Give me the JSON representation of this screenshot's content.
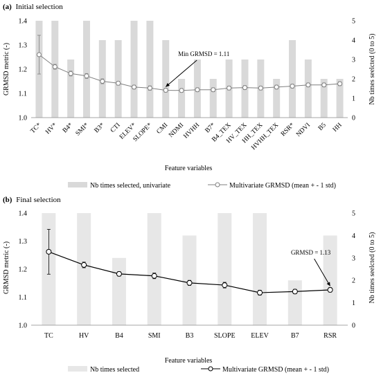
{
  "chart_data": [
    {
      "type": "bar+line",
      "title": "(a) Initial selection",
      "title_prefix": "(a)",
      "title_text": "Initial selection",
      "xlabel": "Feature variables",
      "ylabel_left": "GRMSD metric (-)",
      "ylabel_right": "Nb times seelcted (0 to 5)",
      "ylim_left": [
        1.0,
        1.4
      ],
      "yticks_left": [
        "1.0",
        "1.1",
        "1.2",
        "1.3",
        "1.4"
      ],
      "ylim_right": [
        0,
        5
      ],
      "yticks_right": [
        "0",
        "1",
        "2",
        "3",
        "4",
        "5"
      ],
      "categories": [
        "TC*",
        "HV*",
        "B4*",
        "SMI*",
        "B3*",
        "CTI",
        "ELEV*",
        "SLOPE*",
        "CMI",
        "NDMI",
        "HVHH",
        "B7*",
        "B4_TEX",
        "HV_TEX",
        "HH_TEX",
        "HVHH_TEX",
        "RSR*",
        "NDVI",
        "B5",
        "HH"
      ],
      "bars": {
        "name": "Nb times selected, univariate",
        "color": "#d9d9d9",
        "values": [
          5,
          5,
          3,
          5,
          4,
          4,
          5,
          5,
          4,
          2,
          3,
          2,
          3,
          3,
          3,
          2,
          4,
          3,
          2,
          2
        ]
      },
      "line": {
        "name": "Multivariate GRMSD (mean + - 1 std)",
        "color": "#7f7f7f",
        "mean": [
          1.26,
          1.21,
          1.182,
          1.172,
          1.15,
          1.142,
          1.126,
          1.122,
          1.113,
          1.112,
          1.115,
          1.115,
          1.122,
          1.124,
          1.122,
          1.126,
          1.13,
          1.135,
          1.135,
          1.14
        ],
        "std": [
          0.08,
          0.01,
          0.01,
          0.01,
          0.01,
          0.008,
          0.008,
          0.009,
          0.008,
          0.008,
          0.008,
          0.008,
          0.008,
          0.008,
          0.008,
          0.008,
          0.008,
          0.008,
          0.008,
          0.008
        ]
      },
      "annotation": {
        "text": "Min GRMSD = 1.11",
        "index": 8
      },
      "legend_position": "bottom",
      "grid": false
    },
    {
      "type": "bar+line",
      "title": "(b) Final selection",
      "title_prefix": "(b)",
      "title_text": "Final selection",
      "xlabel": "Feature variables",
      "ylabel_left": "GRMSD metric (-)",
      "ylabel_right": "Nb times seelcted (0 to 5)",
      "ylim_left": [
        1.0,
        1.4
      ],
      "yticks_left": [
        "1.0",
        "1.1",
        "1.2",
        "1.3",
        "1.4"
      ],
      "ylim_right": [
        0,
        5
      ],
      "yticks_right": [
        "0",
        "1",
        "2",
        "3",
        "4",
        "5"
      ],
      "categories": [
        "TC",
        "HV",
        "B4",
        "SMI",
        "B3",
        "SLOPE",
        "ELEV",
        "B7",
        "RSR"
      ],
      "bars": {
        "name": "Nb times selected",
        "color": "#e7e7e7",
        "values": [
          5,
          5,
          3,
          5,
          4,
          5,
          5,
          2,
          4
        ]
      },
      "line": {
        "name": "Multivariate GRMSD (mean + - 1 std)",
        "color": "#000000",
        "mean": [
          1.262,
          1.215,
          1.183,
          1.176,
          1.151,
          1.143,
          1.116,
          1.12,
          1.126
        ],
        "std": [
          0.08,
          0.01,
          0.008,
          0.01,
          0.009,
          0.01,
          0.009,
          0.008,
          0.008
        ]
      },
      "annotation": {
        "text": "GRMSD = 1.13",
        "index": 8
      },
      "legend_position": "bottom",
      "grid": false
    }
  ]
}
